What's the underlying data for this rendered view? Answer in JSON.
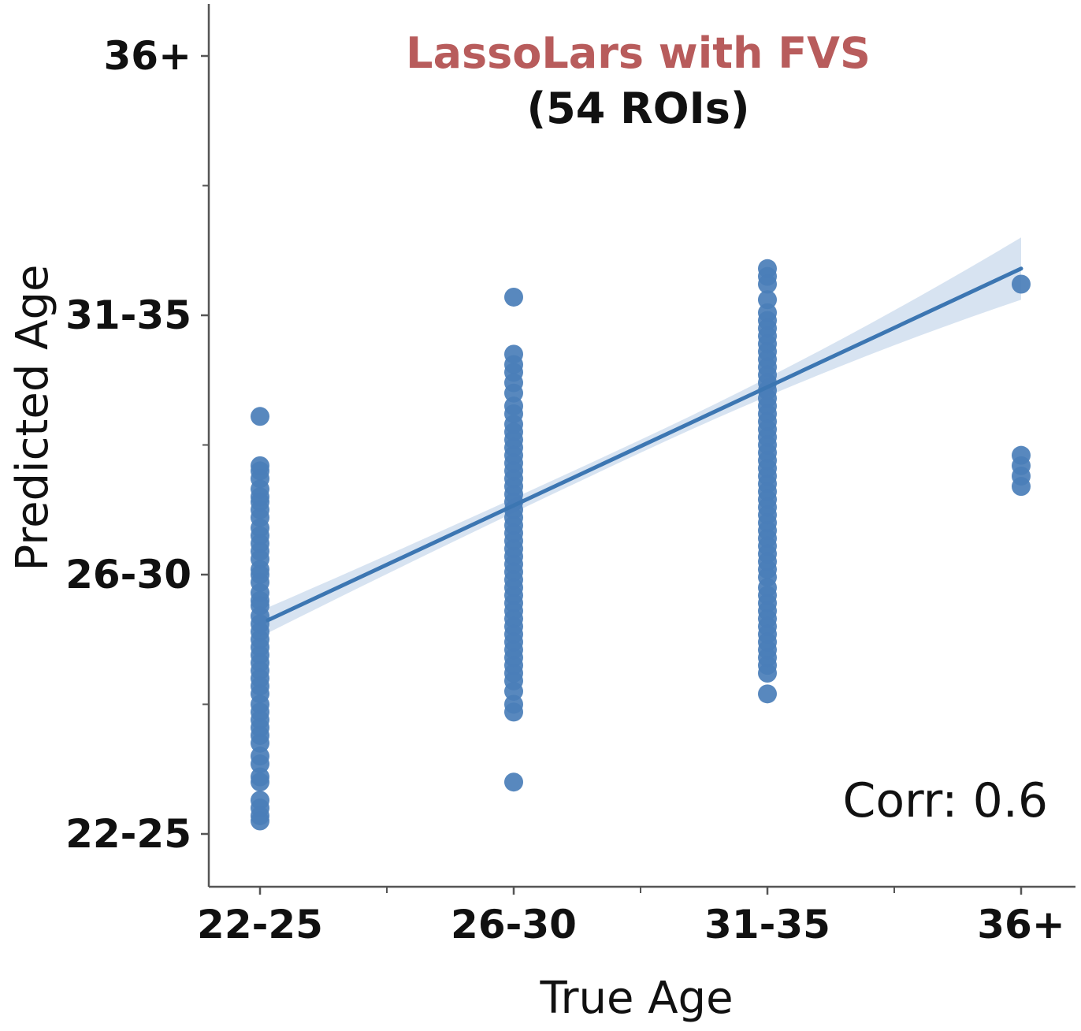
{
  "chart_data": {
    "type": "scatter",
    "title": "LassoLars with FVS",
    "subtitle": "(54 ROIs)",
    "xlabel": "True Age",
    "ylabel": "Predicted Age",
    "annotation": "Corr: 0.6",
    "x_tick_labels": [
      "22-25",
      "26-30",
      "31-35",
      "36+"
    ],
    "y_tick_labels": [
      "22-25",
      "26-30",
      "31-35",
      "36+"
    ],
    "xlim": [
      -0.2,
      3.2
    ],
    "ylim": [
      -0.1,
      3.1
    ],
    "colors": {
      "title": "#b85c5c",
      "points": "#4a7eb8",
      "line": "#3c76b2",
      "band": "#c9daec",
      "axes": "#555555"
    },
    "regression": {
      "x": [
        0,
        3
      ],
      "y": [
        0.81,
        2.18
      ]
    },
    "band_halfwidth": [
      0.05,
      0.12
    ],
    "series": [
      {
        "x": 0,
        "y": [
          1.61,
          1.42,
          1.4,
          1.37,
          1.33,
          1.3,
          1.28,
          1.25,
          1.22,
          1.18,
          1.15,
          1.12,
          1.09,
          1.06,
          1.02,
          1.0,
          0.97,
          0.93,
          0.9,
          0.88,
          0.84,
          0.81,
          0.78,
          0.75,
          0.72,
          0.69,
          0.66,
          0.63,
          0.6,
          0.57,
          0.54,
          0.5,
          0.47,
          0.44,
          0.41,
          0.38,
          0.35,
          0.3,
          0.27,
          0.22,
          0.2,
          0.13,
          0.1,
          0.07,
          0.05
        ]
      },
      {
        "x": 1,
        "y": [
          2.07,
          1.85,
          1.81,
          1.78,
          1.74,
          1.7,
          1.65,
          1.62,
          1.58,
          1.55,
          1.52,
          1.49,
          1.46,
          1.43,
          1.4,
          1.37,
          1.34,
          1.31,
          1.28,
          1.25,
          1.22,
          1.19,
          1.16,
          1.13,
          1.1,
          1.07,
          1.04,
          1.01,
          0.98,
          0.95,
          0.92,
          0.89,
          0.86,
          0.83,
          0.8,
          0.77,
          0.74,
          0.71,
          0.68,
          0.65,
          0.62,
          0.59,
          0.55,
          0.5,
          0.47,
          0.2
        ]
      },
      {
        "x": 2,
        "y": [
          2.18,
          2.15,
          2.12,
          2.06,
          2.01,
          1.98,
          1.95,
          1.92,
          1.89,
          1.86,
          1.83,
          1.8,
          1.77,
          1.74,
          1.71,
          1.68,
          1.65,
          1.62,
          1.59,
          1.56,
          1.53,
          1.5,
          1.47,
          1.44,
          1.41,
          1.38,
          1.35,
          1.32,
          1.29,
          1.26,
          1.23,
          1.2,
          1.17,
          1.14,
          1.11,
          1.08,
          1.05,
          1.02,
          0.99,
          0.95,
          0.92,
          0.89,
          0.86,
          0.83,
          0.8,
          0.77,
          0.74,
          0.71,
          0.68,
          0.65,
          0.62,
          0.54
        ]
      },
      {
        "x": 3,
        "y": [
          2.12,
          1.46,
          1.42,
          1.38,
          1.34
        ]
      }
    ]
  }
}
